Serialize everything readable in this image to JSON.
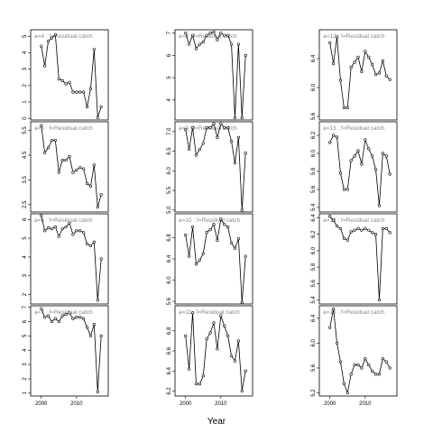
{
  "figure": {
    "xlabel": "Year"
  },
  "chart_data": [
    {
      "type": "line",
      "title": "a=4  :  f=Residual catch",
      "xlim": [
        1997,
        2019
      ],
      "ylim": [
        -0.1,
        5.4
      ],
      "yticks": [
        0,
        1,
        2,
        3,
        4,
        5
      ],
      "xticks": [],
      "series": [
        {
          "x": [
            2000,
            2001,
            2002,
            2003,
            2004,
            2005,
            2006,
            2007,
            2008,
            2009,
            2010,
            2011,
            2012,
            2013,
            2014,
            2015,
            2016,
            2017
          ],
          "values": [
            4.4,
            3.2,
            4.7,
            4.9,
            5.1,
            2.4,
            2.3,
            2.1,
            2.2,
            1.6,
            1.6,
            1.6,
            1.6,
            0.7,
            1.8,
            4.2,
            0.05,
            0.7
          ]
        }
      ]
    },
    {
      "type": "line",
      "title": "a=8  :  f=Residual catch",
      "xlim": [
        1997,
        2019
      ],
      "ylim": [
        3.1,
        7.15
      ],
      "yticks": [
        4,
        5,
        6,
        7
      ],
      "xticks": [],
      "series": [
        {
          "x": [
            2000,
            2001,
            2002,
            2003,
            2004,
            2005,
            2006,
            2007,
            2008,
            2009,
            2010,
            2011,
            2012,
            2013,
            2014,
            2015,
            2016,
            2017
          ],
          "values": [
            7.0,
            6.5,
            6.9,
            6.3,
            6.5,
            6.6,
            6.9,
            7.0,
            7.05,
            6.7,
            7.0,
            6.9,
            6.9,
            6.5,
            3.2,
            6.5,
            3.2,
            6.0
          ]
        }
      ]
    },
    {
      "type": "line",
      "title": "a=12  :  f=Residual catch",
      "xlim": [
        1997,
        2019
      ],
      "ylim": [
        5.55,
        6.8
      ],
      "yticks": [
        5.6,
        6.0,
        6.4
      ],
      "xticks": [],
      "series": [
        {
          "x": [
            2000,
            2001,
            2002,
            2003,
            2004,
            2005,
            2006,
            2007,
            2008,
            2009,
            2010,
            2011,
            2012,
            2013,
            2014,
            2015,
            2016,
            2017
          ],
          "values": [
            6.62,
            6.33,
            6.7,
            6.1,
            5.72,
            5.72,
            6.28,
            6.35,
            6.42,
            6.22,
            6.5,
            6.42,
            6.32,
            6.18,
            6.2,
            6.37,
            6.16,
            6.11
          ]
        }
      ]
    },
    {
      "type": "line",
      "title": "a=5  :  f=Residual catch",
      "xlim": [
        1997,
        2019
      ],
      "ylim": [
        2.2,
        5.85
      ],
      "yticks": [
        2.5,
        3.5,
        4.5,
        5.5
      ],
      "xticks": [],
      "series": [
        {
          "x": [
            2000,
            2001,
            2002,
            2003,
            2004,
            2005,
            2006,
            2007,
            2008,
            2009,
            2010,
            2011,
            2012,
            2013,
            2014,
            2015,
            2016,
            2017
          ],
          "values": [
            5.7,
            4.6,
            4.8,
            5.1,
            5.1,
            3.8,
            4.3,
            4.3,
            4.45,
            3.8,
            3.9,
            4.0,
            3.95,
            3.35,
            3.25,
            4.1,
            2.4,
            2.9
          ]
        }
      ]
    },
    {
      "type": "line",
      "title": "a=9  :  f=Residual catch",
      "xlim": [
        1997,
        2019
      ],
      "ylim": [
        4.95,
        7.25
      ],
      "yticks": [
        5.0,
        5.5,
        6.0,
        6.5,
        7.0
      ],
      "xticks": [],
      "series": [
        {
          "x": [
            2000,
            2001,
            2002,
            2003,
            2004,
            2005,
            2006,
            2007,
            2008,
            2009,
            2010,
            2011,
            2012,
            2013,
            2014,
            2015,
            2016,
            2017
          ],
          "values": [
            7.05,
            6.55,
            7.1,
            6.4,
            6.55,
            6.7,
            7.1,
            7.1,
            7.2,
            6.85,
            7.2,
            7.1,
            7.1,
            6.75,
            6.2,
            6.85,
            5.0,
            6.45
          ]
        }
      ]
    },
    {
      "type": "line",
      "title": "a=13  :  f=Residual catch",
      "xlim": [
        1997,
        2019
      ],
      "ylim": [
        5.35,
        6.35
      ],
      "yticks": [
        5.4,
        5.6,
        5.8,
        6.0,
        6.2
      ],
      "xticks": [],
      "series": [
        {
          "x": [
            2000,
            2001,
            2002,
            2003,
            2004,
            2005,
            2006,
            2007,
            2008,
            2009,
            2010,
            2011,
            2012,
            2013,
            2014,
            2015,
            2016,
            2017
          ],
          "values": [
            6.12,
            6.2,
            6.18,
            5.78,
            5.6,
            5.6,
            5.92,
            5.97,
            6.03,
            5.88,
            6.15,
            6.05,
            5.97,
            5.82,
            5.42,
            6.0,
            5.97,
            5.77
          ]
        }
      ]
    },
    {
      "type": "line",
      "title": "a=6  :  f=Residual catch",
      "xlim": [
        1997,
        2019
      ],
      "ylim": [
        1.5,
        6.3
      ],
      "yticks": [
        2,
        3,
        4,
        5,
        6
      ],
      "xticks": [],
      "series": [
        {
          "x": [
            2000,
            2001,
            2002,
            2003,
            2004,
            2005,
            2006,
            2007,
            2008,
            2009,
            2010,
            2011,
            2012,
            2013,
            2014,
            2015,
            2016,
            2017
          ],
          "values": [
            6.2,
            5.4,
            5.55,
            5.5,
            5.6,
            5.1,
            5.5,
            5.6,
            5.8,
            5.2,
            5.4,
            5.4,
            5.3,
            4.7,
            4.6,
            4.8,
            1.7,
            3.9
          ]
        }
      ]
    },
    {
      "type": "line",
      "title": "a=10  :  f=Residual catch",
      "xlim": [
        1997,
        2019
      ],
      "ylim": [
        5.55,
        7.25
      ],
      "yticks": [
        5.6,
        6.0,
        6.4,
        6.8
      ],
      "xticks": [],
      "series": [
        {
          "x": [
            2000,
            2001,
            2002,
            2003,
            2004,
            2005,
            2006,
            2007,
            2008,
            2009,
            2010,
            2011,
            2012,
            2013,
            2014,
            2015,
            2016,
            2017
          ],
          "values": [
            6.85,
            6.45,
            7.0,
            6.3,
            6.38,
            6.5,
            6.9,
            6.95,
            7.05,
            6.75,
            7.15,
            7.05,
            7.0,
            6.7,
            6.6,
            6.78,
            5.58,
            6.45
          ]
        }
      ]
    },
    {
      "type": "line",
      "title": "a=14  :  f=Residual catch",
      "xlim": [
        1997,
        2019
      ],
      "ylim": [
        5.35,
        6.45
      ],
      "yticks": [
        5.4,
        5.6,
        5.8,
        6.0,
        6.2,
        6.4
      ],
      "xticks": [],
      "series": [
        {
          "x": [
            2000,
            2001,
            2002,
            2003,
            2004,
            2005,
            2006,
            2007,
            2008,
            2009,
            2010,
            2011,
            2012,
            2013,
            2014,
            2015,
            2016,
            2017
          ],
          "values": [
            6.42,
            6.37,
            6.3,
            6.27,
            6.15,
            6.13,
            6.23,
            6.25,
            6.27,
            6.25,
            6.27,
            6.25,
            6.22,
            6.2,
            5.4,
            6.27,
            6.27,
            6.22
          ]
        }
      ]
    },
    {
      "type": "line",
      "title": "a=7  :  f=Residual catch",
      "xlim": [
        1997,
        2019
      ],
      "ylim": [
        0.8,
        7.1
      ],
      "yticks": [
        1,
        2,
        3,
        4,
        5,
        6,
        7
      ],
      "xticks": [
        2000,
        2010
      ],
      "series": [
        {
          "x": [
            2000,
            2001,
            2002,
            2003,
            2004,
            2005,
            2006,
            2007,
            2008,
            2009,
            2010,
            2011,
            2012,
            2013,
            2014,
            2015,
            2016,
            2017
          ],
          "values": [
            6.9,
            6.3,
            6.4,
            6.0,
            6.2,
            6.0,
            6.4,
            6.5,
            6.6,
            6.2,
            6.3,
            6.3,
            6.2,
            5.6,
            5.0,
            5.8,
            1.1,
            5.0
          ]
        }
      ]
    },
    {
      "type": "line",
      "title": "a=11  :  f=Residual catch",
      "xlim": [
        1997,
        2019
      ],
      "ylim": [
        6.15,
        7.05
      ],
      "yticks": [
        6.2,
        6.4,
        6.6,
        6.8
      ],
      "xticks": [
        2000,
        2010
      ],
      "series": [
        {
          "x": [
            2000,
            2001,
            2002,
            2003,
            2004,
            2005,
            2006,
            2007,
            2008,
            2009,
            2010,
            2011,
            2012,
            2013,
            2014,
            2015,
            2016,
            2017
          ],
          "values": [
            6.75,
            6.42,
            6.98,
            6.27,
            6.27,
            6.35,
            6.72,
            6.78,
            6.88,
            6.62,
            6.95,
            6.85,
            6.75,
            6.55,
            6.5,
            6.7,
            6.2,
            6.4
          ]
        }
      ]
    },
    {
      "type": "line",
      "title": "a=15  :  f=Residual catch",
      "xlim": [
        1997,
        2019
      ],
      "ylim": [
        5.15,
        6.6
      ],
      "yticks": [
        5.2,
        5.6,
        6.0,
        6.4
      ],
      "xticks": [
        2000,
        2010
      ],
      "series": [
        {
          "x": [
            2000,
            2001,
            2002,
            2003,
            2004,
            2005,
            2006,
            2007,
            2008,
            2009,
            2010,
            2011,
            2012,
            2013,
            2014,
            2015,
            2016,
            2017
          ],
          "values": [
            6.25,
            6.55,
            6.0,
            5.7,
            5.35,
            5.2,
            5.5,
            5.65,
            5.65,
            5.6,
            5.75,
            5.65,
            5.55,
            5.5,
            5.5,
            5.75,
            5.7,
            5.6
          ]
        }
      ]
    }
  ]
}
